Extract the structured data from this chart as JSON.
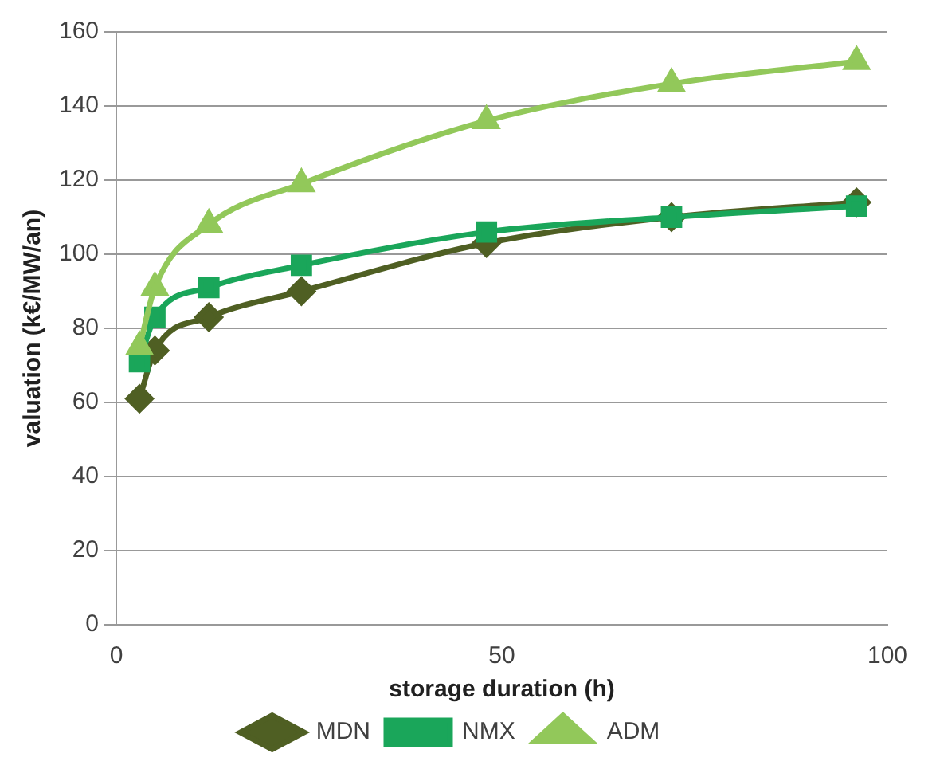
{
  "chart_data": {
    "type": "line",
    "xlabel": "storage duration (h)",
    "ylabel": "valuation (k€/MW/an)",
    "x": [
      3,
      5,
      12,
      24,
      48,
      72,
      96
    ],
    "series": [
      {
        "name": "MDN",
        "color": "#4f5f23",
        "marker": "diamond",
        "values": [
          61,
          74,
          83,
          90,
          103,
          110,
          114
        ]
      },
      {
        "name": "NMX",
        "color": "#1aa65a",
        "marker": "square",
        "values": [
          71,
          83,
          91,
          97,
          106,
          110,
          113
        ]
      },
      {
        "name": "ADM",
        "color": "#92c85a",
        "marker": "triangle",
        "values": [
          75,
          91,
          108,
          119,
          136,
          146,
          152
        ]
      }
    ],
    "xlim": [
      0,
      100
    ],
    "xticks": [
      0,
      50,
      100
    ],
    "ylim": [
      0,
      160
    ],
    "yticks": [
      0,
      20,
      40,
      60,
      80,
      100,
      120,
      140,
      160
    ],
    "grid": "y",
    "legend": "bottom"
  }
}
